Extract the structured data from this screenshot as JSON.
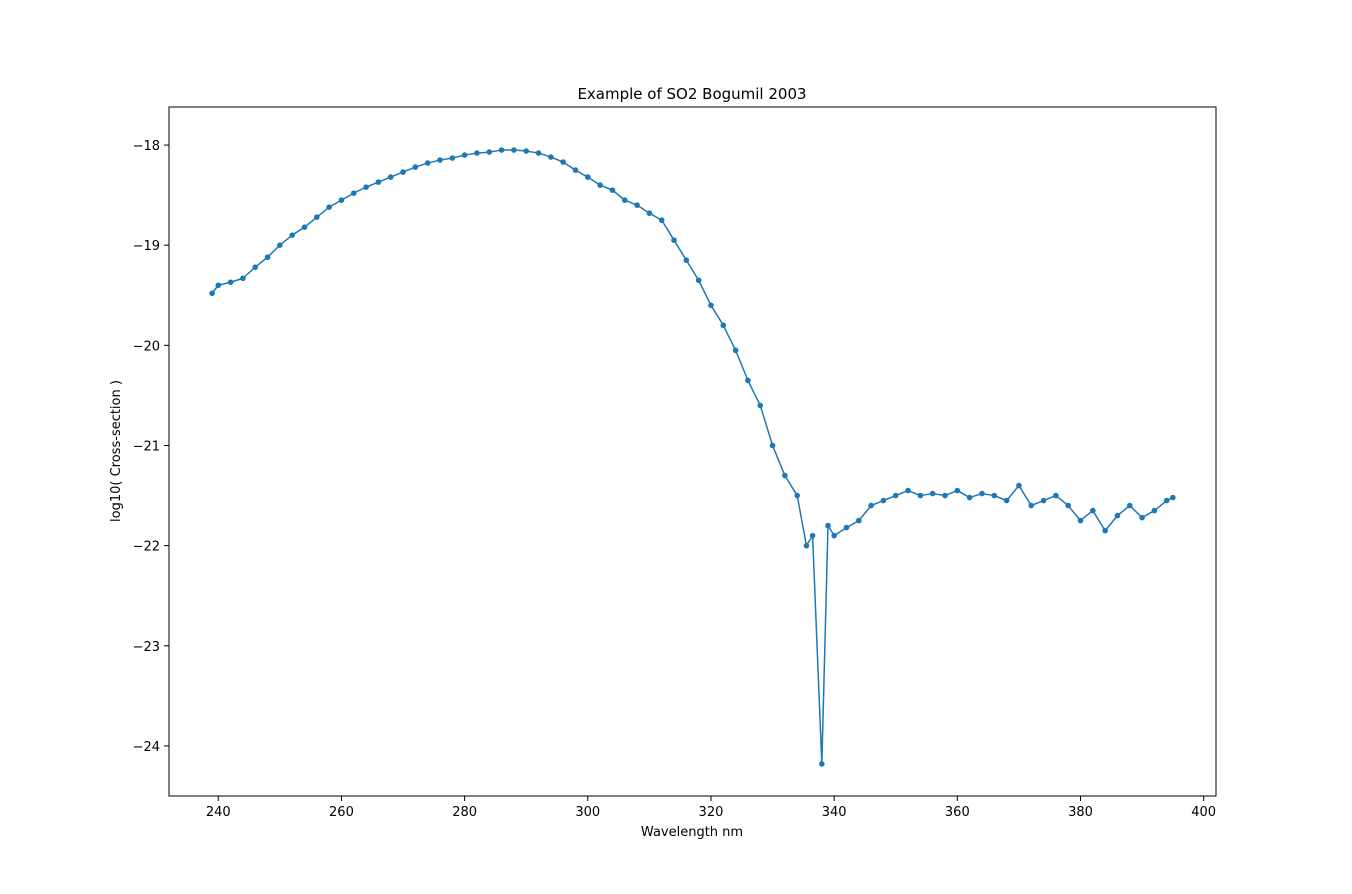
{
  "chart_data": {
    "type": "line",
    "title": "Example of SO2 Bogumil 2003",
    "xlabel": "Wavelength nm",
    "ylabel": "log10( Cross-section )",
    "xlim": [
      232,
      402
    ],
    "ylim": [
      -24.5,
      -17.62
    ],
    "xticks": [
      240,
      260,
      280,
      300,
      320,
      340,
      360,
      380,
      400
    ],
    "yticks": [
      -18,
      -19,
      -20,
      -21,
      -22,
      -23,
      -24
    ],
    "xtick_labels": [
      "240",
      "260",
      "280",
      "300",
      "320",
      "340",
      "360",
      "380",
      "400"
    ],
    "ytick_labels": [
      "−18",
      "−19",
      "−20",
      "−21",
      "−22",
      "−23",
      "−24"
    ],
    "grid": false,
    "marker": "circle",
    "colors": {
      "series": "#1f77b4"
    },
    "series": [
      {
        "x": [
          239.0,
          240.0,
          242.0,
          244.0,
          246.0,
          248.0,
          250.0,
          252.0,
          254.0,
          256.0,
          258.0,
          260.0,
          262.0,
          264.0,
          266.0,
          268.0,
          270.0,
          272.0,
          274.0,
          276.0,
          278.0,
          280.0,
          282.0,
          284.0,
          286.0,
          288.0,
          290.0,
          292.0,
          294.0,
          296.0,
          298.0,
          300.0,
          302.0,
          304.0,
          306.0,
          308.0,
          310.0,
          312.0,
          314.0,
          316.0,
          318.0,
          320.0,
          322.0,
          324.0,
          326.0,
          328.0,
          330.0,
          332.0,
          334.0,
          335.5,
          336.5,
          338.0,
          339.0,
          340.0,
          342.0,
          344.0,
          346.0,
          348.0,
          350.0,
          352.0,
          354.0,
          356.0,
          358.0,
          360.0,
          362.0,
          364.0,
          366.0,
          368.0,
          370.0,
          372.0,
          374.0,
          376.0,
          378.0,
          380.0,
          382.0,
          384.0,
          386.0,
          388.0,
          390.0,
          392.0,
          394.0,
          395.0
        ],
        "y": [
          -19.48,
          -19.4,
          -19.37,
          -19.33,
          -19.22,
          -19.12,
          -19.0,
          -18.9,
          -18.82,
          -18.72,
          -18.62,
          -18.55,
          -18.48,
          -18.42,
          -18.37,
          -18.32,
          -18.27,
          -18.22,
          -18.18,
          -18.15,
          -18.13,
          -18.1,
          -18.08,
          -18.07,
          -18.05,
          -18.05,
          -18.06,
          -18.08,
          -18.12,
          -18.17,
          -18.25,
          -18.32,
          -18.4,
          -18.45,
          -18.55,
          -18.6,
          -18.68,
          -18.75,
          -18.95,
          -19.15,
          -19.35,
          -19.6,
          -19.8,
          -20.05,
          -20.35,
          -20.6,
          -21.0,
          -21.3,
          -21.5,
          -22.0,
          -21.9,
          -24.18,
          -21.8,
          -21.9,
          -21.82,
          -21.75,
          -21.6,
          -21.55,
          -21.5,
          -21.45,
          -21.5,
          -21.48,
          -21.5,
          -21.45,
          -21.52,
          -21.48,
          -21.5,
          -21.55,
          -21.4,
          -21.6,
          -21.55,
          -21.5,
          -21.6,
          -21.75,
          -21.65,
          -21.85,
          -21.7,
          -21.6,
          -21.72,
          -21.65,
          -21.55,
          -21.52
        ]
      }
    ]
  }
}
